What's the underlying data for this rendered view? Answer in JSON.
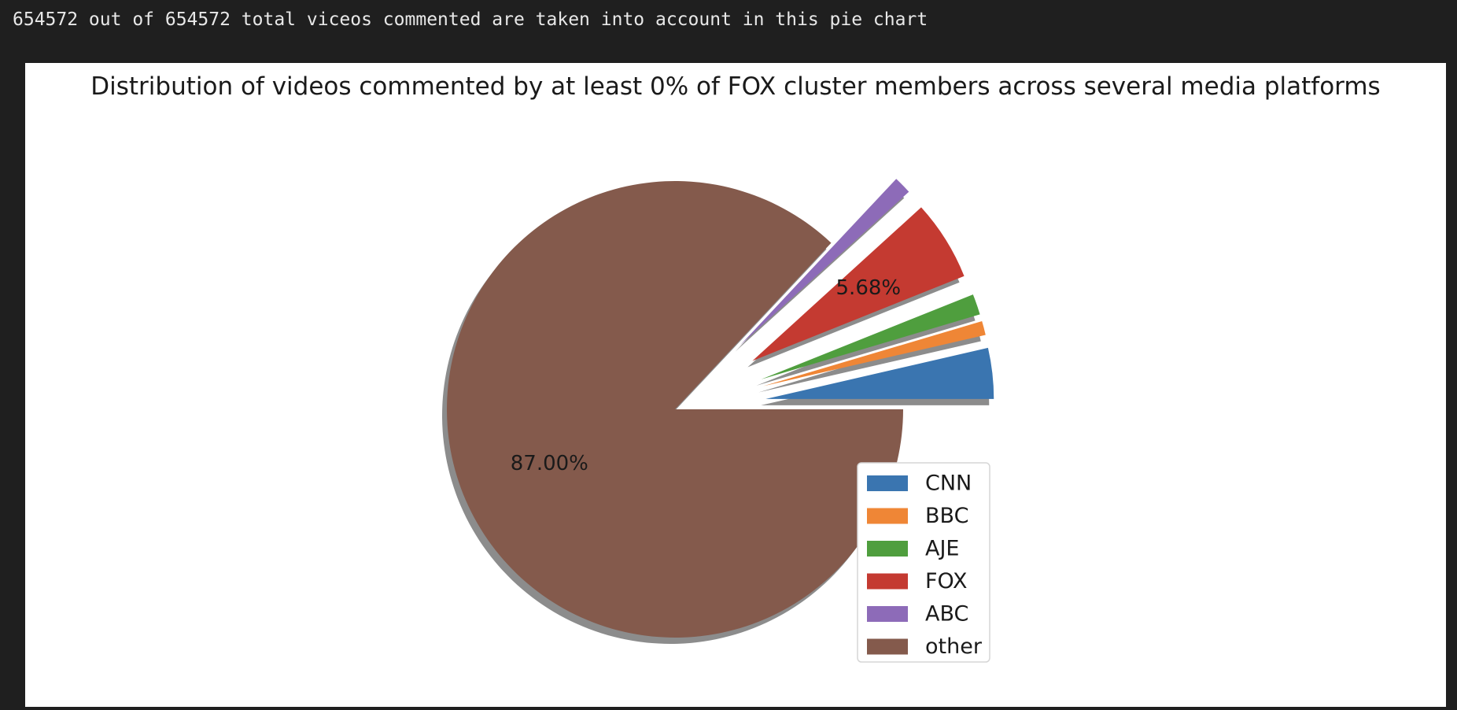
{
  "output": {
    "text": "654572 out of 654572 total viceos commented are taken into account in this pie chart"
  },
  "chart_data": {
    "type": "pie",
    "title": "Distribution of videos commented by at least 0% of FOX cluster members across several media platforms",
    "labels": [
      "CNN",
      "BBC",
      "AJE",
      "FOX",
      "ABC",
      "other"
    ],
    "values": [
      3.6,
      0.99,
      1.47,
      5.68,
      1.26,
      87.0
    ],
    "colors": [
      "#3a75b0",
      "#ef8636",
      "#4f9e3e",
      "#c43a31",
      "#8d6bb8",
      "#845a4c"
    ],
    "explode": [
      0.4,
      0.4,
      0.4,
      0.4,
      0.4,
      0.0
    ],
    "start_angle": 0,
    "shadow": true,
    "visible_percent_labels": [
      "5.68%",
      "87.00%"
    ],
    "legend": {
      "entries": [
        "CNN",
        "BBC",
        "AJE",
        "FOX",
        "ABC",
        "other"
      ],
      "location": "lower-right"
    }
  }
}
